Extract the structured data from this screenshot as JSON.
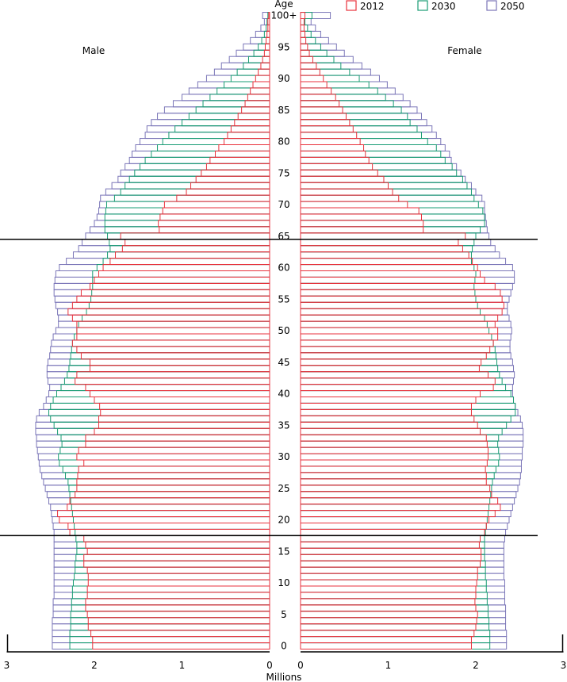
{
  "chart_data": {
    "type": "bar",
    "subtype": "population-pyramid",
    "title": "",
    "age_axis_label": "Age",
    "x_axis_label": "Millions",
    "left_panel_label": "Male",
    "right_panel_label": "Female",
    "age_tick_labels": [
      "0",
      "5",
      "10",
      "15",
      "20",
      "25",
      "30",
      "35",
      "40",
      "45",
      "50",
      "55",
      "60",
      "65",
      "70",
      "75",
      "80",
      "85",
      "90",
      "95",
      "100+"
    ],
    "value_tick_labels": [
      "0",
      "1",
      "2",
      "3"
    ],
    "xlim": [
      0,
      3
    ],
    "reference_ages": [
      18,
      65
    ],
    "legend_position": "top-right",
    "colors": {
      "2012": "#e8323c",
      "2030": "#1a9c74",
      "2050": "#7b76b8",
      "axis": "#000000"
    },
    "series": [
      {
        "name": "2012",
        "male": [
          2.02,
          2.02,
          2.04,
          2.07,
          2.07,
          2.08,
          2.1,
          2.1,
          2.08,
          2.08,
          2.07,
          2.07,
          2.08,
          2.12,
          2.12,
          2.08,
          2.1,
          2.12,
          2.28,
          2.3,
          2.4,
          2.42,
          2.31,
          2.28,
          2.22,
          2.2,
          2.2,
          2.19,
          2.18,
          2.12,
          2.2,
          2.18,
          2.1,
          2.1,
          2.0,
          1.95,
          1.95,
          1.93,
          1.94,
          2.0,
          2.05,
          2.1,
          2.22,
          2.2,
          2.05,
          2.05,
          2.15,
          2.2,
          2.25,
          2.2,
          2.2,
          2.2,
          2.25,
          2.3,
          2.25,
          2.2,
          2.15,
          2.05,
          2.0,
          1.95,
          1.9,
          1.82,
          1.76,
          1.68,
          1.65,
          1.7,
          1.26,
          1.27,
          1.25,
          1.22,
          1.2,
          1.06,
          0.95,
          0.9,
          0.84,
          0.78,
          0.72,
          0.68,
          0.62,
          0.58,
          0.52,
          0.48,
          0.44,
          0.4,
          0.36,
          0.32,
          0.28,
          0.25,
          0.22,
          0.19,
          0.16,
          0.13,
          0.1,
          0.08,
          0.06,
          0.05,
          0.04,
          0.03,
          0.02,
          0.02,
          0.01
        ],
        "female": [
          1.95,
          1.95,
          1.98,
          2.0,
          2.01,
          2.02,
          2.0,
          1.99,
          2.0,
          2.0,
          2.01,
          2.02,
          2.02,
          2.05,
          2.06,
          2.06,
          2.04,
          2.05,
          2.1,
          2.12,
          2.15,
          2.22,
          2.28,
          2.25,
          2.18,
          2.16,
          2.12,
          2.12,
          2.11,
          2.13,
          2.14,
          2.14,
          2.13,
          2.12,
          2.05,
          2.02,
          1.98,
          1.95,
          1.95,
          2.0,
          2.05,
          2.2,
          2.22,
          2.14,
          2.04,
          2.06,
          2.12,
          2.16,
          2.2,
          2.25,
          2.25,
          2.22,
          2.25,
          2.3,
          2.32,
          2.3,
          2.28,
          2.22,
          2.1,
          2.05,
          2.02,
          1.96,
          1.92,
          1.85,
          1.8,
          1.88,
          1.4,
          1.4,
          1.38,
          1.35,
          1.22,
          1.12,
          1.05,
          1.0,
          0.95,
          0.88,
          0.82,
          0.78,
          0.74,
          0.72,
          0.68,
          0.64,
          0.6,
          0.56,
          0.52,
          0.48,
          0.44,
          0.4,
          0.35,
          0.3,
          0.26,
          0.22,
          0.18,
          0.14,
          0.1,
          0.08,
          0.06,
          0.05,
          0.04,
          0.04,
          0.05
        ]
      },
      {
        "name": "2030",
        "male": [
          2.28,
          2.28,
          2.28,
          2.27,
          2.27,
          2.27,
          2.26,
          2.26,
          2.25,
          2.25,
          2.24,
          2.23,
          2.22,
          2.22,
          2.21,
          2.2,
          2.2,
          2.21,
          2.22,
          2.23,
          2.24,
          2.25,
          2.26,
          2.27,
          2.28,
          2.29,
          2.3,
          2.33,
          2.36,
          2.4,
          2.41,
          2.39,
          2.37,
          2.38,
          2.42,
          2.46,
          2.5,
          2.52,
          2.5,
          2.47,
          2.43,
          2.38,
          2.34,
          2.31,
          2.29,
          2.28,
          2.27,
          2.26,
          2.25,
          2.23,
          2.2,
          2.18,
          2.14,
          2.09,
          2.06,
          2.04,
          2.03,
          2.02,
          2.02,
          2.02,
          1.97,
          1.9,
          1.85,
          1.82,
          1.83,
          1.85,
          1.88,
          1.88,
          1.88,
          1.87,
          1.86,
          1.77,
          1.7,
          1.65,
          1.6,
          1.54,
          1.48,
          1.42,
          1.35,
          1.28,
          1.22,
          1.15,
          1.08,
          1.0,
          0.92,
          0.84,
          0.76,
          0.68,
          0.6,
          0.52,
          0.44,
          0.37,
          0.3,
          0.24,
          0.18,
          0.13,
          0.09,
          0.06,
          0.04,
          0.03,
          0.02
        ],
        "female": [
          2.16,
          2.16,
          2.16,
          2.15,
          2.15,
          2.14,
          2.14,
          2.13,
          2.13,
          2.12,
          2.12,
          2.11,
          2.11,
          2.11,
          2.1,
          2.1,
          2.1,
          2.1,
          2.11,
          2.12,
          2.13,
          2.14,
          2.15,
          2.16,
          2.17,
          2.18,
          2.19,
          2.21,
          2.23,
          2.26,
          2.27,
          2.26,
          2.25,
          2.26,
          2.3,
          2.35,
          2.4,
          2.45,
          2.45,
          2.43,
          2.4,
          2.34,
          2.3,
          2.27,
          2.25,
          2.24,
          2.23,
          2.22,
          2.2,
          2.18,
          2.15,
          2.13,
          2.1,
          2.05,
          2.02,
          2.0,
          1.99,
          1.98,
          1.99,
          2.0,
          1.98,
          1.95,
          1.95,
          1.96,
          1.98,
          2.0,
          2.05,
          2.1,
          2.1,
          2.08,
          2.03,
          1.98,
          1.95,
          1.9,
          1.85,
          1.78,
          1.73,
          1.65,
          1.6,
          1.55,
          1.45,
          1.38,
          1.33,
          1.25,
          1.22,
          1.15,
          1.06,
          0.97,
          0.88,
          0.78,
          0.67,
          0.56,
          0.46,
          0.38,
          0.3,
          0.23,
          0.17,
          0.12,
          0.08,
          0.05,
          0.13
        ]
      },
      {
        "name": "2050",
        "male": [
          2.48,
          2.48,
          2.48,
          2.48,
          2.48,
          2.47,
          2.47,
          2.47,
          2.46,
          2.46,
          2.46,
          2.46,
          2.46,
          2.46,
          2.46,
          2.46,
          2.46,
          2.46,
          2.46,
          2.47,
          2.48,
          2.49,
          2.5,
          2.52,
          2.54,
          2.56,
          2.58,
          2.6,
          2.62,
          2.63,
          2.64,
          2.65,
          2.66,
          2.66,
          2.67,
          2.67,
          2.66,
          2.63,
          2.58,
          2.55,
          2.52,
          2.51,
          2.53,
          2.54,
          2.54,
          2.53,
          2.51,
          2.5,
          2.49,
          2.47,
          2.44,
          2.41,
          2.41,
          2.42,
          2.44,
          2.45,
          2.46,
          2.46,
          2.45,
          2.44,
          2.4,
          2.32,
          2.24,
          2.18,
          2.14,
          2.1,
          2.05,
          2.0,
          1.97,
          1.95,
          1.94,
          1.93,
          1.87,
          1.8,
          1.73,
          1.7,
          1.65,
          1.6,
          1.57,
          1.53,
          1.48,
          1.42,
          1.4,
          1.35,
          1.28,
          1.2,
          1.1,
          1.0,
          0.92,
          0.82,
          0.72,
          0.63,
          0.55,
          0.46,
          0.38,
          0.3,
          0.22,
          0.16,
          0.1,
          0.06,
          0.08
        ],
        "female": [
          2.35,
          2.35,
          2.35,
          2.34,
          2.34,
          2.34,
          2.34,
          2.33,
          2.33,
          2.33,
          2.33,
          2.32,
          2.32,
          2.32,
          2.32,
          2.32,
          2.32,
          2.33,
          2.34,
          2.36,
          2.38,
          2.4,
          2.42,
          2.44,
          2.46,
          2.48,
          2.5,
          2.51,
          2.52,
          2.52,
          2.53,
          2.53,
          2.54,
          2.54,
          2.54,
          2.53,
          2.51,
          2.48,
          2.45,
          2.43,
          2.42,
          2.42,
          2.43,
          2.44,
          2.43,
          2.42,
          2.4,
          2.39,
          2.39,
          2.4,
          2.41,
          2.4,
          2.38,
          2.36,
          2.36,
          2.38,
          2.4,
          2.42,
          2.44,
          2.44,
          2.42,
          2.34,
          2.27,
          2.22,
          2.17,
          2.15,
          2.13,
          2.12,
          2.11,
          2.1,
          2.1,
          2.07,
          2.0,
          1.95,
          1.88,
          1.83,
          1.78,
          1.72,
          1.7,
          1.65,
          1.6,
          1.55,
          1.5,
          1.44,
          1.38,
          1.33,
          1.25,
          1.17,
          1.08,
          0.99,
          0.9,
          0.8,
          0.7,
          0.6,
          0.5,
          0.41,
          0.32,
          0.23,
          0.17,
          0.12,
          0.34
        ]
      }
    ]
  }
}
